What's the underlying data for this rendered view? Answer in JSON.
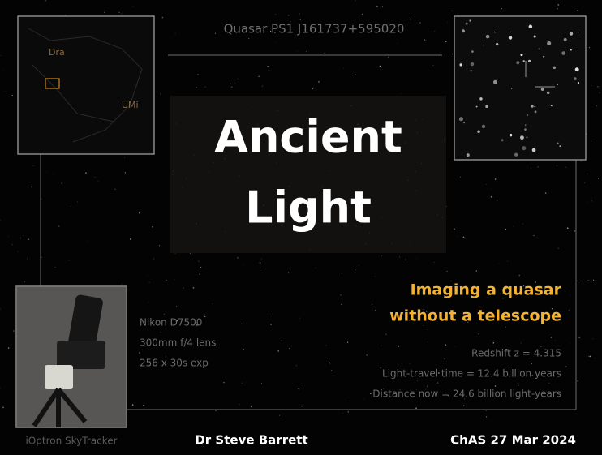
{
  "slide": {
    "header": "Quasar  PS1 J161737+595020",
    "finder_labels": [
      "Dra",
      "UMi"
    ],
    "title_lines": [
      "Ancient",
      "Light"
    ],
    "subtitle_lines": [
      "Imaging a quasar",
      "without a telescope"
    ],
    "equipment": [
      "Nikon D7500",
      "300mm f/4 lens",
      "256 x 30s exp"
    ],
    "facts": [
      "Redshift z = 4.315",
      "Light-travel time = 12.4 billion years",
      "Distance now = 24.6 billion light-years"
    ],
    "photo_caption": "iOptron SkyTracker",
    "author": "Dr Steve Barrett",
    "event": "ChAS  27 Mar 2024"
  }
}
